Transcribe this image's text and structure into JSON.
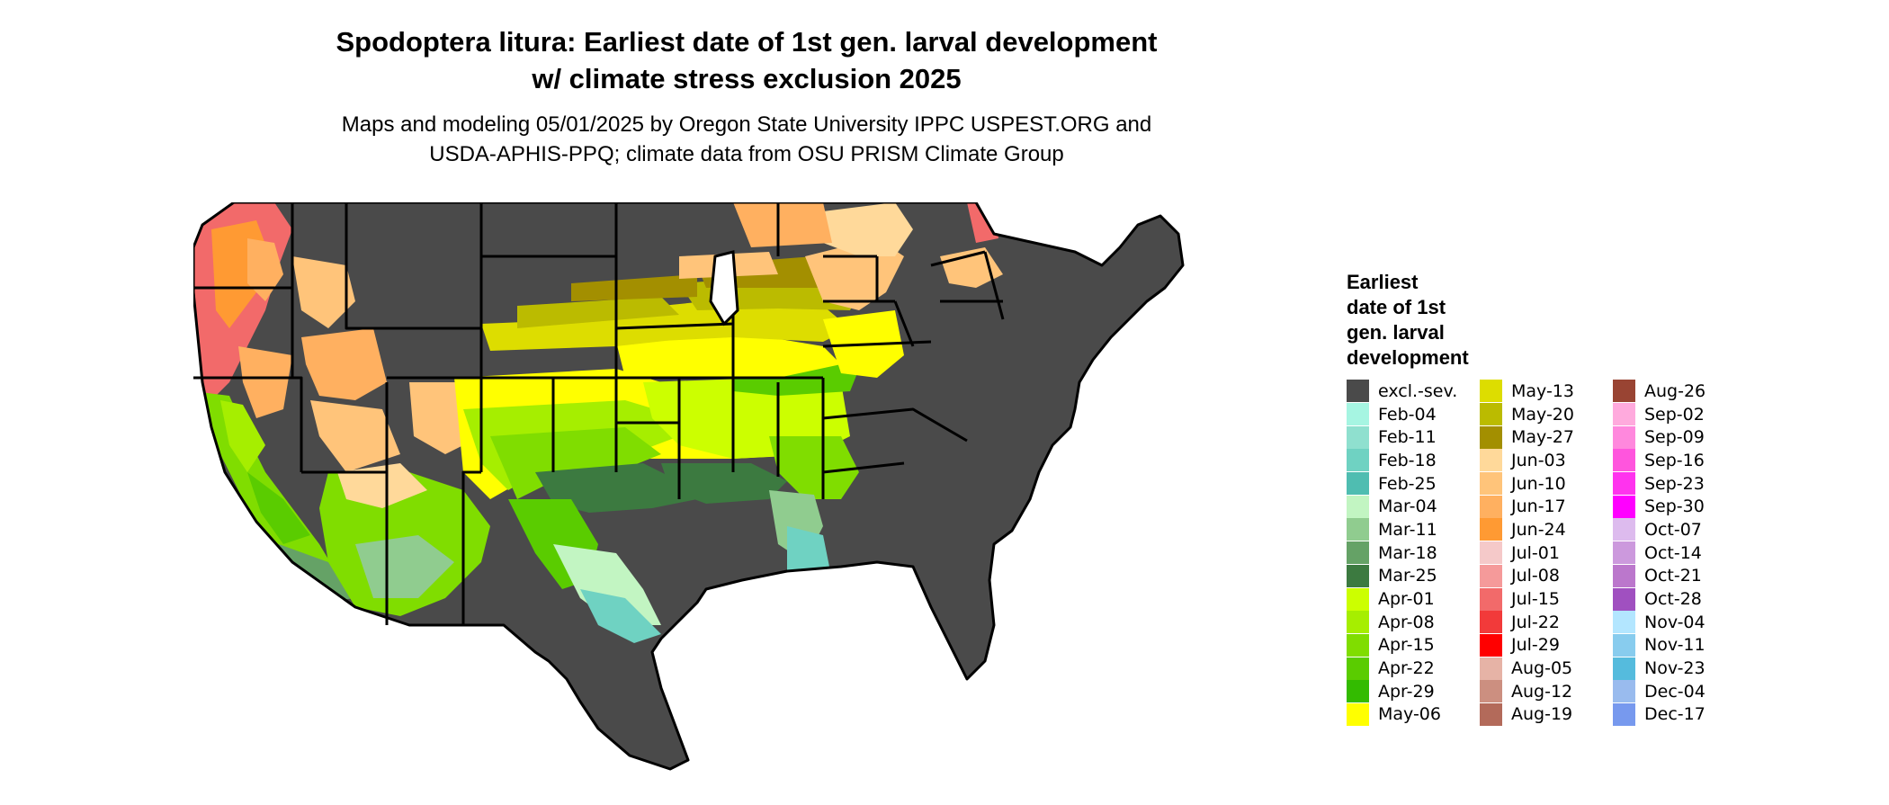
{
  "title": {
    "line1": "Spodoptera litura: Earliest date of 1st gen. larval development",
    "line2": "w/ climate stress exclusion 2025"
  },
  "subtitle": {
    "line1": "Maps and modeling 05/01/2025 by Oregon State University IPPC USPEST.ORG and",
    "line2": "USDA-APHIS-PPQ; climate data from OSU PRISM Climate Group"
  },
  "legend": {
    "title_lines": [
      "Earliest",
      "date of 1st",
      "gen. larval",
      "development"
    ],
    "columns": [
      [
        {
          "label": "excl.-sev.",
          "color": "#4a4a4a"
        },
        {
          "label": "Feb-04",
          "color": "#a6f5e2"
        },
        {
          "label": "Feb-11",
          "color": "#8fe0cf"
        },
        {
          "label": "Feb-18",
          "color": "#6fd2c2"
        },
        {
          "label": "Feb-25",
          "color": "#4fbdb1"
        },
        {
          "label": "Mar-04",
          "color": "#c2f5c2"
        },
        {
          "label": "Mar-11",
          "color": "#90cc8f"
        },
        {
          "label": "Mar-18",
          "color": "#65a266"
        },
        {
          "label": "Mar-25",
          "color": "#3c7a40"
        },
        {
          "label": "Apr-01",
          "color": "#ccff00"
        },
        {
          "label": "Apr-08",
          "color": "#a6ee00"
        },
        {
          "label": "Apr-15",
          "color": "#80dd00"
        },
        {
          "label": "Apr-22",
          "color": "#5acc00"
        },
        {
          "label": "Apr-29",
          "color": "#33bb00"
        },
        {
          "label": "May-06",
          "color": "#ffff00"
        }
      ],
      [
        {
          "label": "May-13",
          "color": "#dddd00"
        },
        {
          "label": "May-20",
          "color": "#bbbb00"
        },
        {
          "label": "May-27",
          "color": "#a38f00"
        },
        {
          "label": "Jun-03",
          "color": "#ffd99a"
        },
        {
          "label": "Jun-10",
          "color": "#ffc47a"
        },
        {
          "label": "Jun-17",
          "color": "#ffb060"
        },
        {
          "label": "Jun-24",
          "color": "#ff9a33"
        },
        {
          "label": "Jul-01",
          "color": "#f5c9c9"
        },
        {
          "label": "Jul-08",
          "color": "#f59a9a"
        },
        {
          "label": "Jul-15",
          "color": "#f26a6a"
        },
        {
          "label": "Jul-22",
          "color": "#f23a3a"
        },
        {
          "label": "Jul-29",
          "color": "#ff0000"
        },
        {
          "label": "Aug-05",
          "color": "#e6b3a6"
        },
        {
          "label": "Aug-12",
          "color": "#cc8f80"
        },
        {
          "label": "Aug-19",
          "color": "#b36a5a"
        }
      ],
      [
        {
          "label": "Aug-26",
          "color": "#994433"
        },
        {
          "label": "Sep-02",
          "color": "#ffaadd"
        },
        {
          "label": "Sep-09",
          "color": "#ff88dd"
        },
        {
          "label": "Sep-16",
          "color": "#ff55dd"
        },
        {
          "label": "Sep-23",
          "color": "#ff33ee"
        },
        {
          "label": "Sep-30",
          "color": "#ff00ff"
        },
        {
          "label": "Oct-07",
          "color": "#ddbbee"
        },
        {
          "label": "Oct-14",
          "color": "#cc99dd"
        },
        {
          "label": "Oct-21",
          "color": "#bb77cc"
        },
        {
          "label": "Oct-28",
          "color": "#a050c0"
        },
        {
          "label": "Nov-04",
          "color": "#b3e6ff"
        },
        {
          "label": "Nov-11",
          "color": "#88ccee"
        },
        {
          "label": "Nov-23",
          "color": "#55bbdd"
        },
        {
          "label": "Dec-04",
          "color": "#99bbee"
        },
        {
          "label": "Dec-17",
          "color": "#7799ee"
        }
      ]
    ]
  }
}
